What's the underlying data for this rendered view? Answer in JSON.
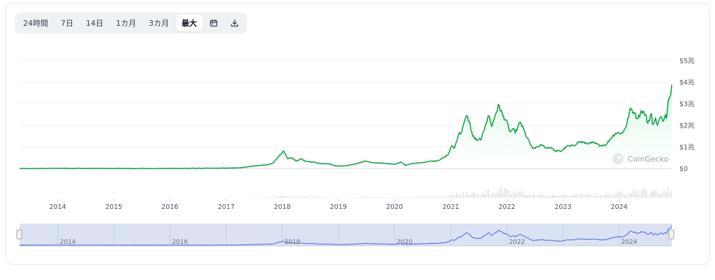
{
  "toolbar": {
    "ranges": [
      "24時間",
      "7日",
      "14日",
      "1カ月",
      "3カ月",
      "最大"
    ],
    "active_range": "最大",
    "calendar_icon": "calendar-icon",
    "download_icon": "download-icon"
  },
  "watermark": "CoinGecko",
  "colors": {
    "line": "#16a34a",
    "fill_top": "#bbf7d0",
    "navigator_line": "#3b5bdb",
    "navigator_fill": "#dbe2f3",
    "volume": "#d1d5db"
  },
  "chart_data": {
    "type": "area",
    "title": "",
    "xlabel": "",
    "ylabel": "",
    "y_unit": "trillion USD",
    "ylim": [
      0,
      5
    ],
    "yticks": [
      0,
      1,
      2,
      3,
      4,
      5
    ],
    "ytick_labels": [
      "$0",
      "$1兆",
      "$2兆",
      "$3兆",
      "$4兆",
      "$5兆"
    ],
    "xlim": [
      "2013-04-28",
      "2024-12-08"
    ],
    "xticks": [
      "2014",
      "2015",
      "2016",
      "2017",
      "2018",
      "2019",
      "2020",
      "2021",
      "2022",
      "2023",
      "2024"
    ],
    "grid": true,
    "series": [
      {
        "x": [
          "2013-04-28",
          "2013-07-01",
          "2014-01-01",
          "2014-06-01",
          "2015-01-01",
          "2015-06-01",
          "2016-01-01",
          "2016-06-01",
          "2017-01-01",
          "2017-03-01",
          "2017-05-01",
          "2017-06-15",
          "2017-08-01",
          "2017-09-01",
          "2017-10-01",
          "2017-11-01",
          "2017-12-01",
          "2017-12-15",
          "2018-01-07",
          "2018-02-06",
          "2018-03-01",
          "2018-04-01",
          "2018-05-05",
          "2018-06-01",
          "2018-07-25",
          "2018-09-01",
          "2018-11-01",
          "2018-12-15",
          "2019-02-01",
          "2019-04-01",
          "2019-05-15",
          "2019-06-26",
          "2019-08-01",
          "2019-09-15",
          "2019-11-01",
          "2020-01-01",
          "2020-02-14",
          "2020-03-13",
          "2020-05-01",
          "2020-07-01",
          "2020-08-15",
          "2020-10-01",
          "2020-11-15",
          "2020-12-15",
          "2021-01-08",
          "2021-01-25",
          "2021-02-21",
          "2021-03-10",
          "2021-04-14",
          "2021-05-01",
          "2021-05-23",
          "2021-06-22",
          "2021-07-20",
          "2021-08-15",
          "2021-09-06",
          "2021-09-25",
          "2021-10-20",
          "2021-11-10",
          "2021-12-05",
          "2021-12-25",
          "2022-01-22",
          "2022-02-10",
          "2022-02-24",
          "2022-03-30",
          "2022-05-10",
          "2022-06-18",
          "2022-07-20",
          "2022-08-15",
          "2022-09-15",
          "2022-10-15",
          "2022-11-09",
          "2022-12-20",
          "2023-01-25",
          "2023-03-10",
          "2023-04-15",
          "2023-06-15",
          "2023-07-15",
          "2023-09-01",
          "2023-10-10",
          "2023-11-01",
          "2023-12-10",
          "2024-01-23",
          "2024-02-20",
          "2024-03-14",
          "2024-04-10",
          "2024-05-01",
          "2024-05-25",
          "2024-06-20",
          "2024-07-05",
          "2024-07-29",
          "2024-08-05",
          "2024-08-25",
          "2024-09-06",
          "2024-09-27",
          "2024-10-10",
          "2024-10-29",
          "2024-11-05",
          "2024-11-15",
          "2024-11-28",
          "2024-12-08"
        ],
        "values": [
          0.0015,
          0.0012,
          0.012,
          0.008,
          0.005,
          0.004,
          0.007,
          0.01,
          0.018,
          0.025,
          0.06,
          0.11,
          0.14,
          0.16,
          0.18,
          0.25,
          0.5,
          0.62,
          0.82,
          0.45,
          0.5,
          0.35,
          0.45,
          0.33,
          0.3,
          0.24,
          0.22,
          0.12,
          0.12,
          0.18,
          0.26,
          0.35,
          0.28,
          0.26,
          0.24,
          0.2,
          0.3,
          0.15,
          0.24,
          0.27,
          0.34,
          0.35,
          0.5,
          0.65,
          1.05,
          0.95,
          1.6,
          1.65,
          2.45,
          2.2,
          1.5,
          1.3,
          1.4,
          2.05,
          2.45,
          1.95,
          2.55,
          2.95,
          2.45,
          2.25,
          1.7,
          1.85,
          1.65,
          2.15,
          1.45,
          0.92,
          1.0,
          1.1,
          0.95,
          0.98,
          0.82,
          0.8,
          1.02,
          1.06,
          1.25,
          1.15,
          1.2,
          1.06,
          1.12,
          1.35,
          1.65,
          1.65,
          2.05,
          2.8,
          2.55,
          2.3,
          2.7,
          2.5,
          2.1,
          2.55,
          2.05,
          2.35,
          2.0,
          2.4,
          2.2,
          2.5,
          2.35,
          3.1,
          3.35,
          3.88
        ]
      }
    ],
    "navigator_ticks": [
      "2014",
      "2016",
      "2018",
      "2020",
      "2022",
      "2024"
    ]
  }
}
